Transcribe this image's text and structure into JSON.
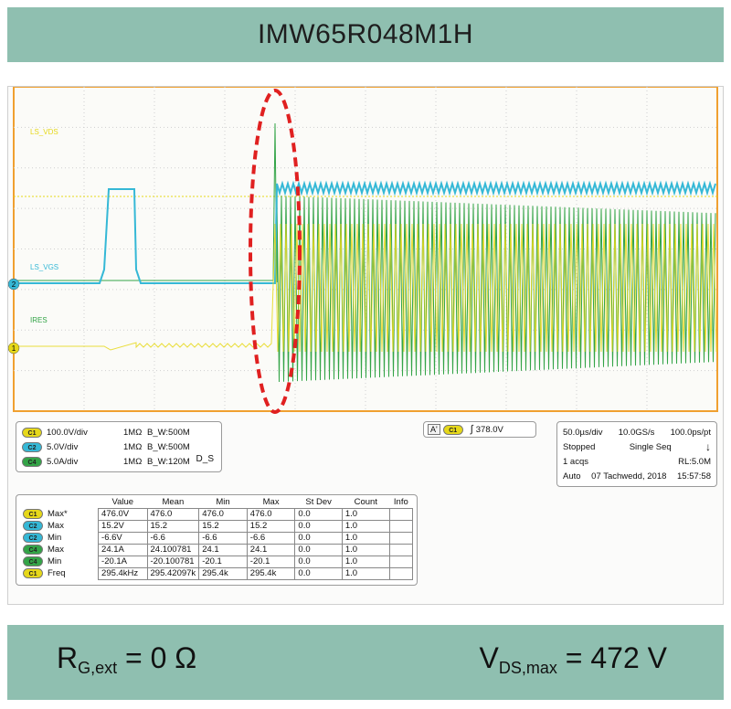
{
  "title": "IMW65R048M1H",
  "footer": {
    "left": {
      "main": "R",
      "sub": "G,ext",
      "rest": " = 0 Ω"
    },
    "right": {
      "main": "V",
      "sub": "DS,max",
      "rest": " = 472 V"
    }
  },
  "colors": {
    "banner": "#8fbfb0",
    "scope_border": "#f0a030",
    "ch1": "#e6d81a",
    "ch2": "#35b8d6",
    "ch4": "#33a447",
    "highlight": "#e02020"
  },
  "chart_data": {
    "type": "line",
    "title": "",
    "xlabel": "",
    "ylabel": "",
    "x_divisions": 10,
    "y_divisions": 8,
    "grid": true,
    "trace_labels": [
      "LS_VDS",
      "LS_VGS",
      "IRES"
    ],
    "channel_markers": [
      "2",
      "1"
    ],
    "series": [
      {
        "name": "LS_VDS",
        "channel": "C1",
        "color": "#e6d81a",
        "scale_per_div": "100.0V/div",
        "description_values": {
          "off_level_V": 0,
          "on_level_V": 476,
          "ringing": true
        }
      },
      {
        "name": "LS_VGS",
        "channel": "C2",
        "color": "#35b8d6",
        "scale_per_div": "5.0V/div",
        "description_values": {
          "low_V": -6.6,
          "high_V": 15.2
        }
      },
      {
        "name": "IRES",
        "channel": "C4",
        "color": "#33a447",
        "scale_per_div": "5.0A/div",
        "description_values": {
          "max_A": 24.1,
          "min_A": -20.1,
          "ring_freq_kHz": 295.4
        }
      }
    ],
    "annotation": "dashed ellipse highlighting switching event"
  },
  "channels": [
    {
      "badge": "C1",
      "scale": "100.0V/div",
      "impedance": "1MΩ",
      "bw": "B_W:500M"
    },
    {
      "badge": "C2",
      "scale": "5.0V/div",
      "impedance": "1MΩ",
      "bw": "B_W:500M"
    },
    {
      "badge": "C4",
      "scale": "5.0A/div",
      "impedance": "1MΩ",
      "bw": "B_W:120M"
    }
  ],
  "channel_ds": "D_S",
  "trigger": {
    "a_label": "A'",
    "badge": "C1",
    "edge": "∫",
    "level": "378.0V"
  },
  "timebase": {
    "row1": [
      "50.0µs/div",
      "10.0GS/s",
      "100.0ps/pt"
    ],
    "row2": [
      "Stopped",
      "Single Seq",
      "↓"
    ],
    "row3": [
      "1 acqs",
      "RL:5.0M"
    ],
    "row4": [
      "Auto",
      "07 Tachwedd, 2018",
      "15:57:58"
    ]
  },
  "measurements": {
    "headers": [
      "Value",
      "Mean",
      "Min",
      "Max",
      "St Dev",
      "Count",
      "Info"
    ],
    "rows": [
      {
        "badge": "C1",
        "label": "Max*",
        "value": "476.0V",
        "mean": "476.0",
        "min": "476.0",
        "max": "476.0",
        "stdev": "0.0",
        "count": "1.0"
      },
      {
        "badge": "C2",
        "label": "Max",
        "value": "15.2V",
        "mean": "15.2",
        "min": "15.2",
        "max": "15.2",
        "stdev": "0.0",
        "count": "1.0"
      },
      {
        "badge": "C2",
        "label": "Min",
        "value": "-6.6V",
        "mean": "-6.6",
        "min": "-6.6",
        "max": "-6.6",
        "stdev": "0.0",
        "count": "1.0"
      },
      {
        "badge": "C4",
        "label": "Max",
        "value": "24.1A",
        "mean": "24.100781",
        "min": "24.1",
        "max": "24.1",
        "stdev": "0.0",
        "count": "1.0"
      },
      {
        "badge": "C4",
        "label": "Min",
        "value": "-20.1A",
        "mean": "-20.100781",
        "min": "-20.1",
        "max": "-20.1",
        "stdev": "0.0",
        "count": "1.0"
      },
      {
        "badge": "C1",
        "label": "Freq",
        "value": "295.4kHz",
        "mean": "295.42097k",
        "min": "295.4k",
        "max": "295.4k",
        "stdev": "0.0",
        "count": "1.0"
      }
    ]
  }
}
